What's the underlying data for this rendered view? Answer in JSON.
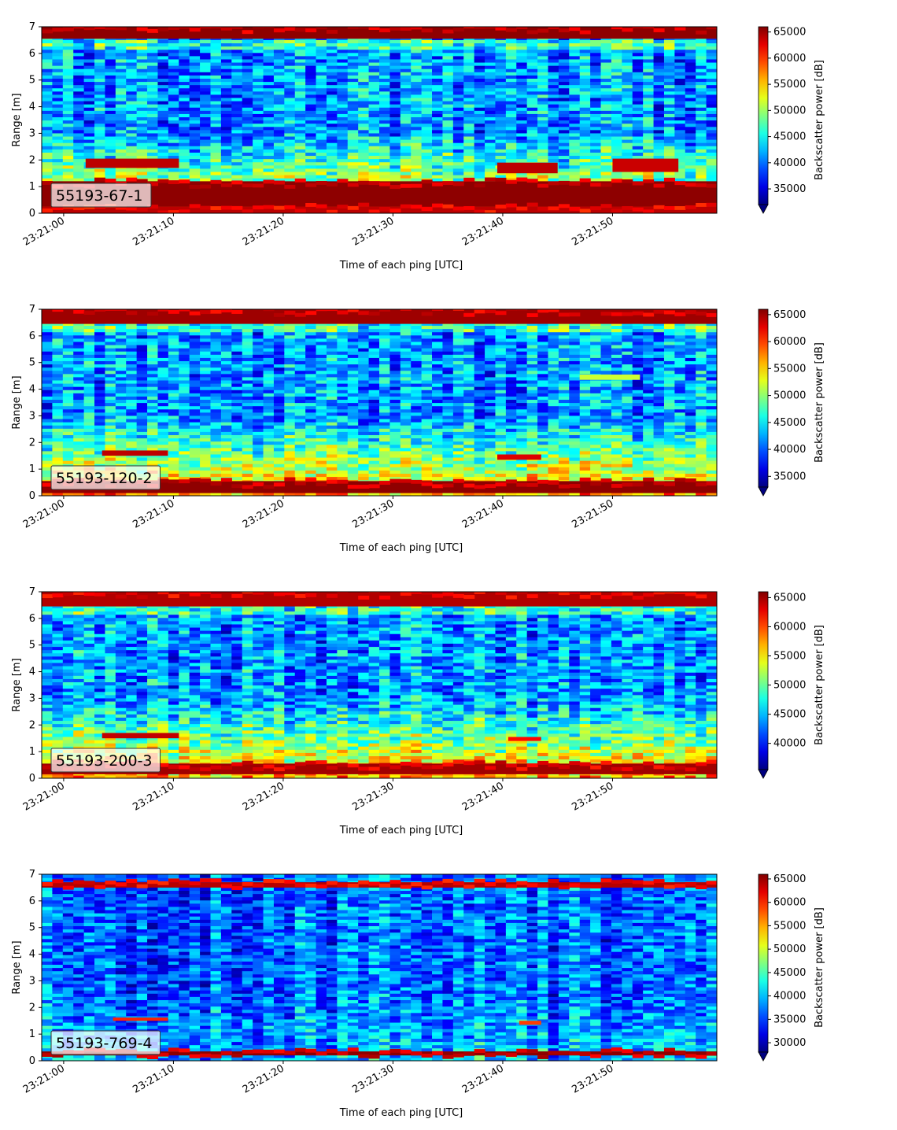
{
  "chart_data": [
    {
      "type": "heatmap",
      "label": "55193-67-1",
      "xlabel": "Time of each ping [UTC]",
      "ylabel": "Range [m]",
      "xticks": [
        "23:21:00",
        "23:21:10",
        "23:21:20",
        "23:21:30",
        "23:21:40",
        "23:21:50"
      ],
      "xlim_seconds": [
        -2,
        59.5
      ],
      "yticks": [
        0,
        1,
        2,
        3,
        4,
        5,
        6,
        7
      ],
      "ylim": [
        0,
        7
      ],
      "colorbar_label": "Backscatter power [dB]",
      "colorbar_ticks": [
        35000,
        40000,
        45000,
        50000,
        55000,
        60000,
        65000
      ],
      "color_range": [
        32000,
        66000
      ],
      "colorbar_extend": "min",
      "bands": [
        {
          "y": [
            0.0,
            0.25
          ],
          "value": 64000
        },
        {
          "y": [
            0.25,
            1.2
          ],
          "value": 65500
        },
        {
          "y": [
            6.55,
            7.0
          ],
          "value": 65500
        }
      ],
      "patches": [
        {
          "t": [
            2,
            10.5
          ],
          "y": [
            1.7,
            2.05
          ],
          "value": 64000
        },
        {
          "t": [
            39.5,
            45
          ],
          "y": [
            1.5,
            1.9
          ],
          "value": 64000
        },
        {
          "t": [
            50,
            56
          ],
          "y": [
            1.55,
            2.05
          ],
          "value": 63500
        }
      ]
    },
    {
      "type": "heatmap",
      "label": "55193-120-2",
      "xlabel": "Time of each ping [UTC]",
      "ylabel": "Range [m]",
      "xticks": [
        "23:21:00",
        "23:21:10",
        "23:21:20",
        "23:21:30",
        "23:21:40",
        "23:21:50"
      ],
      "xlim_seconds": [
        -2,
        59.5
      ],
      "yticks": [
        0,
        1,
        2,
        3,
        4,
        5,
        6,
        7
      ],
      "ylim": [
        0,
        7
      ],
      "colorbar_label": "Backscatter power [dB]",
      "colorbar_ticks": [
        35000,
        40000,
        45000,
        50000,
        55000,
        60000,
        65000
      ],
      "color_range": [
        33000,
        66000
      ],
      "colorbar_extend": "min",
      "bands": [
        {
          "y": [
            0.1,
            0.55
          ],
          "value": 65500
        },
        {
          "y": [
            6.45,
            7.0
          ],
          "value": 65000
        }
      ],
      "patches": [
        {
          "t": [
            3.5,
            9.5
          ],
          "y": [
            1.5,
            1.7
          ],
          "value": 64000
        },
        {
          "t": [
            39.5,
            43.5
          ],
          "y": [
            1.35,
            1.55
          ],
          "value": 63000
        },
        {
          "t": [
            47,
            52.5
          ],
          "y": [
            4.35,
            4.55
          ],
          "value": 52000
        }
      ]
    },
    {
      "type": "heatmap",
      "label": "55193-200-3",
      "xlabel": "Time of each ping [UTC]",
      "ylabel": "Range [m]",
      "xticks": [
        "23:21:00",
        "23:21:10",
        "23:21:20",
        "23:21:30",
        "23:21:40",
        "23:21:50"
      ],
      "xlim_seconds": [
        -2,
        59.5
      ],
      "yticks": [
        0,
        1,
        2,
        3,
        4,
        5,
        6,
        7
      ],
      "ylim": [
        0,
        7
      ],
      "colorbar_label": "Backscatter power [dB]",
      "colorbar_ticks": [
        40000,
        45000,
        50000,
        55000,
        60000,
        65000
      ],
      "color_range": [
        35500,
        66000
      ],
      "colorbar_extend": "min",
      "bands": [
        {
          "y": [
            0.15,
            0.55
          ],
          "value": 65000
        },
        {
          "y": [
            6.45,
            7.0
          ],
          "value": 64500
        }
      ],
      "patches": [
        {
          "t": [
            3.5,
            10.5
          ],
          "y": [
            1.5,
            1.7
          ],
          "value": 64000
        },
        {
          "t": [
            40.5,
            43.5
          ],
          "y": [
            1.4,
            1.55
          ],
          "value": 62000
        }
      ]
    },
    {
      "type": "heatmap",
      "label": "55193-769-4",
      "xlabel": "Time of each ping [UTC]",
      "ylabel": "Range [m]",
      "xticks": [
        "23:21:00",
        "23:21:10",
        "23:21:20",
        "23:21:30",
        "23:21:40",
        "23:21:50"
      ],
      "xlim_seconds": [
        -2,
        59.5
      ],
      "yticks": [
        0,
        1,
        2,
        3,
        4,
        5,
        6,
        7
      ],
      "ylim": [
        0,
        7
      ],
      "colorbar_label": "Backscatter power [dB]",
      "colorbar_ticks": [
        30000,
        35000,
        40000,
        45000,
        50000,
        55000,
        60000,
        65000
      ],
      "color_range": [
        28000,
        66000
      ],
      "colorbar_extend": "min",
      "bands": [
        {
          "y": [
            0.2,
            0.35
          ],
          "value": 65500
        },
        {
          "y": [
            6.5,
            6.7
          ],
          "value": 64000
        }
      ],
      "patches": [
        {
          "t": [
            4.5,
            9.5
          ],
          "y": [
            1.5,
            1.62
          ],
          "value": 60000
        },
        {
          "t": [
            41.5,
            43.5
          ],
          "y": [
            1.35,
            1.5
          ],
          "value": 59000
        }
      ]
    }
  ]
}
